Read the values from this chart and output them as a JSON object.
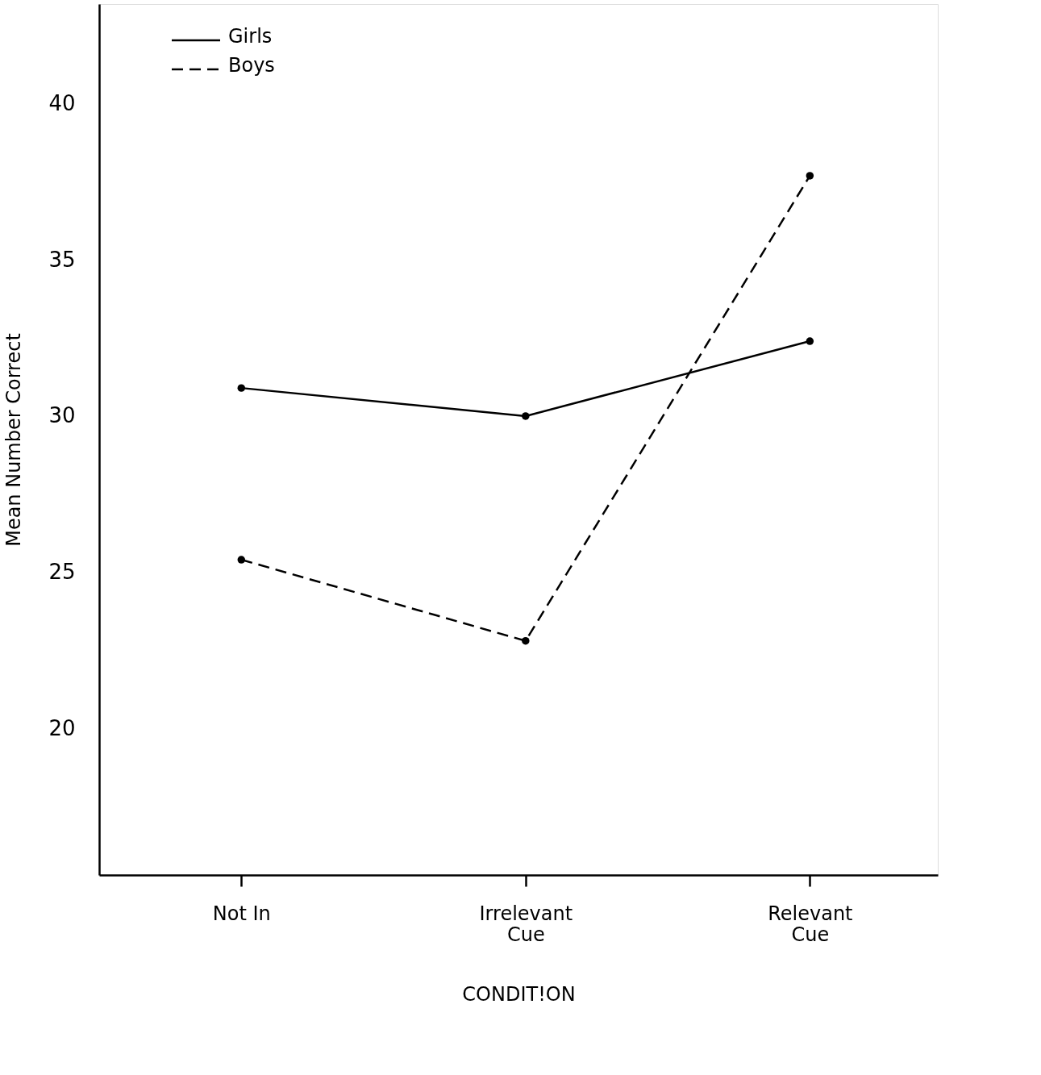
{
  "chart_data": {
    "type": "line",
    "xlabel": "CONDIT!ON",
    "ylabel": "Mean Number Correct",
    "categories": [
      "Not In",
      "Irrelevant\nCue",
      "Relevant\nCue"
    ],
    "series": [
      {
        "name": "Girls",
        "color": "#000000",
        "line_style": "solid",
        "values": [
          30.9,
          30.0,
          32.4
        ]
      },
      {
        "name": "Boys",
        "color": "#000000",
        "line_style": "dashed",
        "values": [
          25.4,
          22.8,
          37.7
        ]
      }
    ],
    "ylim": [
      15.3,
      43.2
    ],
    "yticks": [
      20,
      25,
      30,
      35,
      40
    ],
    "grid": false,
    "legend": "top left",
    "marker": "circle"
  }
}
